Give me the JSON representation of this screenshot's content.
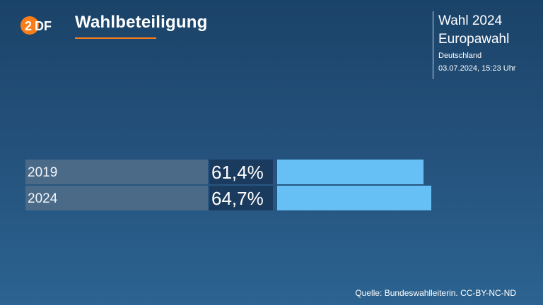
{
  "header": {
    "title": "Wahlbeteiligung",
    "info_line1": "Wahl 2024",
    "info_line2": "Europawahl",
    "info_line3": "Deutschland",
    "info_line4": "03.07.2024, 15:23 Uhr"
  },
  "colors": {
    "accent": "#fa7d19",
    "bar": "#66c0f5",
    "label_box": "#4a6a88",
    "value_box": "#1b3b5e"
  },
  "chart_data": {
    "type": "bar",
    "orientation": "horizontal",
    "categories": [
      "2019",
      "2024"
    ],
    "values": [
      61.4,
      64.7
    ],
    "value_labels": [
      "61,4%",
      "64,7%"
    ],
    "xlim": [
      0,
      100
    ]
  },
  "footer": {
    "source": "Quelle: Bundeswahlleiterin. CC-BY-NC-ND"
  }
}
